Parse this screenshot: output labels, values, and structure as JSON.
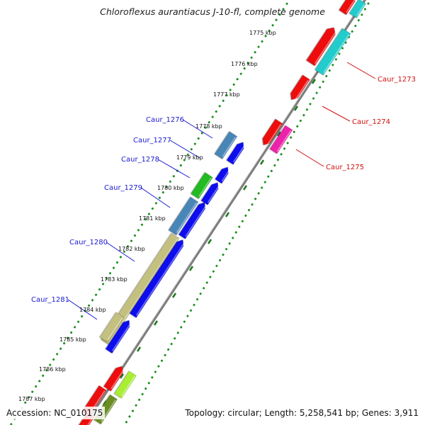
{
  "title": "Chloroflexus aurantiacus J-10-fl, complete genome",
  "footer": {
    "accession": "Accession: NC_010175",
    "summary": "Topology: circular; Length: 5,258,541 bp; Genes: 3,911"
  },
  "colors": {
    "backbone": "#808080",
    "tick_dots": "#1d8f1d",
    "left_label": "#1a1ad0",
    "right_label": "#d01010",
    "kbp_label": "#111111"
  },
  "kbp_labels": [
    "1775 kbp",
    "1776 kbp",
    "1777 kbp",
    "1778 kbp",
    "1779 kbp",
    "1780 kbp",
    "1781 kbp",
    "1782 kbp",
    "1783 kbp",
    "1784 kbp",
    "1785 kbp",
    "1786 kbp",
    "1787 kbp"
  ],
  "genes_left": [
    "Caur_1276",
    "Caur_1277",
    "Caur_1278",
    "Caur_1279",
    "Caur_1280",
    "Caur_1281"
  ],
  "genes_right": [
    "Caur_1273",
    "Caur_1274",
    "Caur_1275"
  ],
  "feature_colors": {
    "red": "#ee1111",
    "cyan": "#22cccc",
    "magenta": "#ee22aa",
    "steelblue": "#4a86b8",
    "blue": "#1010ee",
    "green": "#22bb22",
    "khaki": "#c4c080",
    "lime": "#aaee33",
    "olive": "#6b8e23"
  }
}
